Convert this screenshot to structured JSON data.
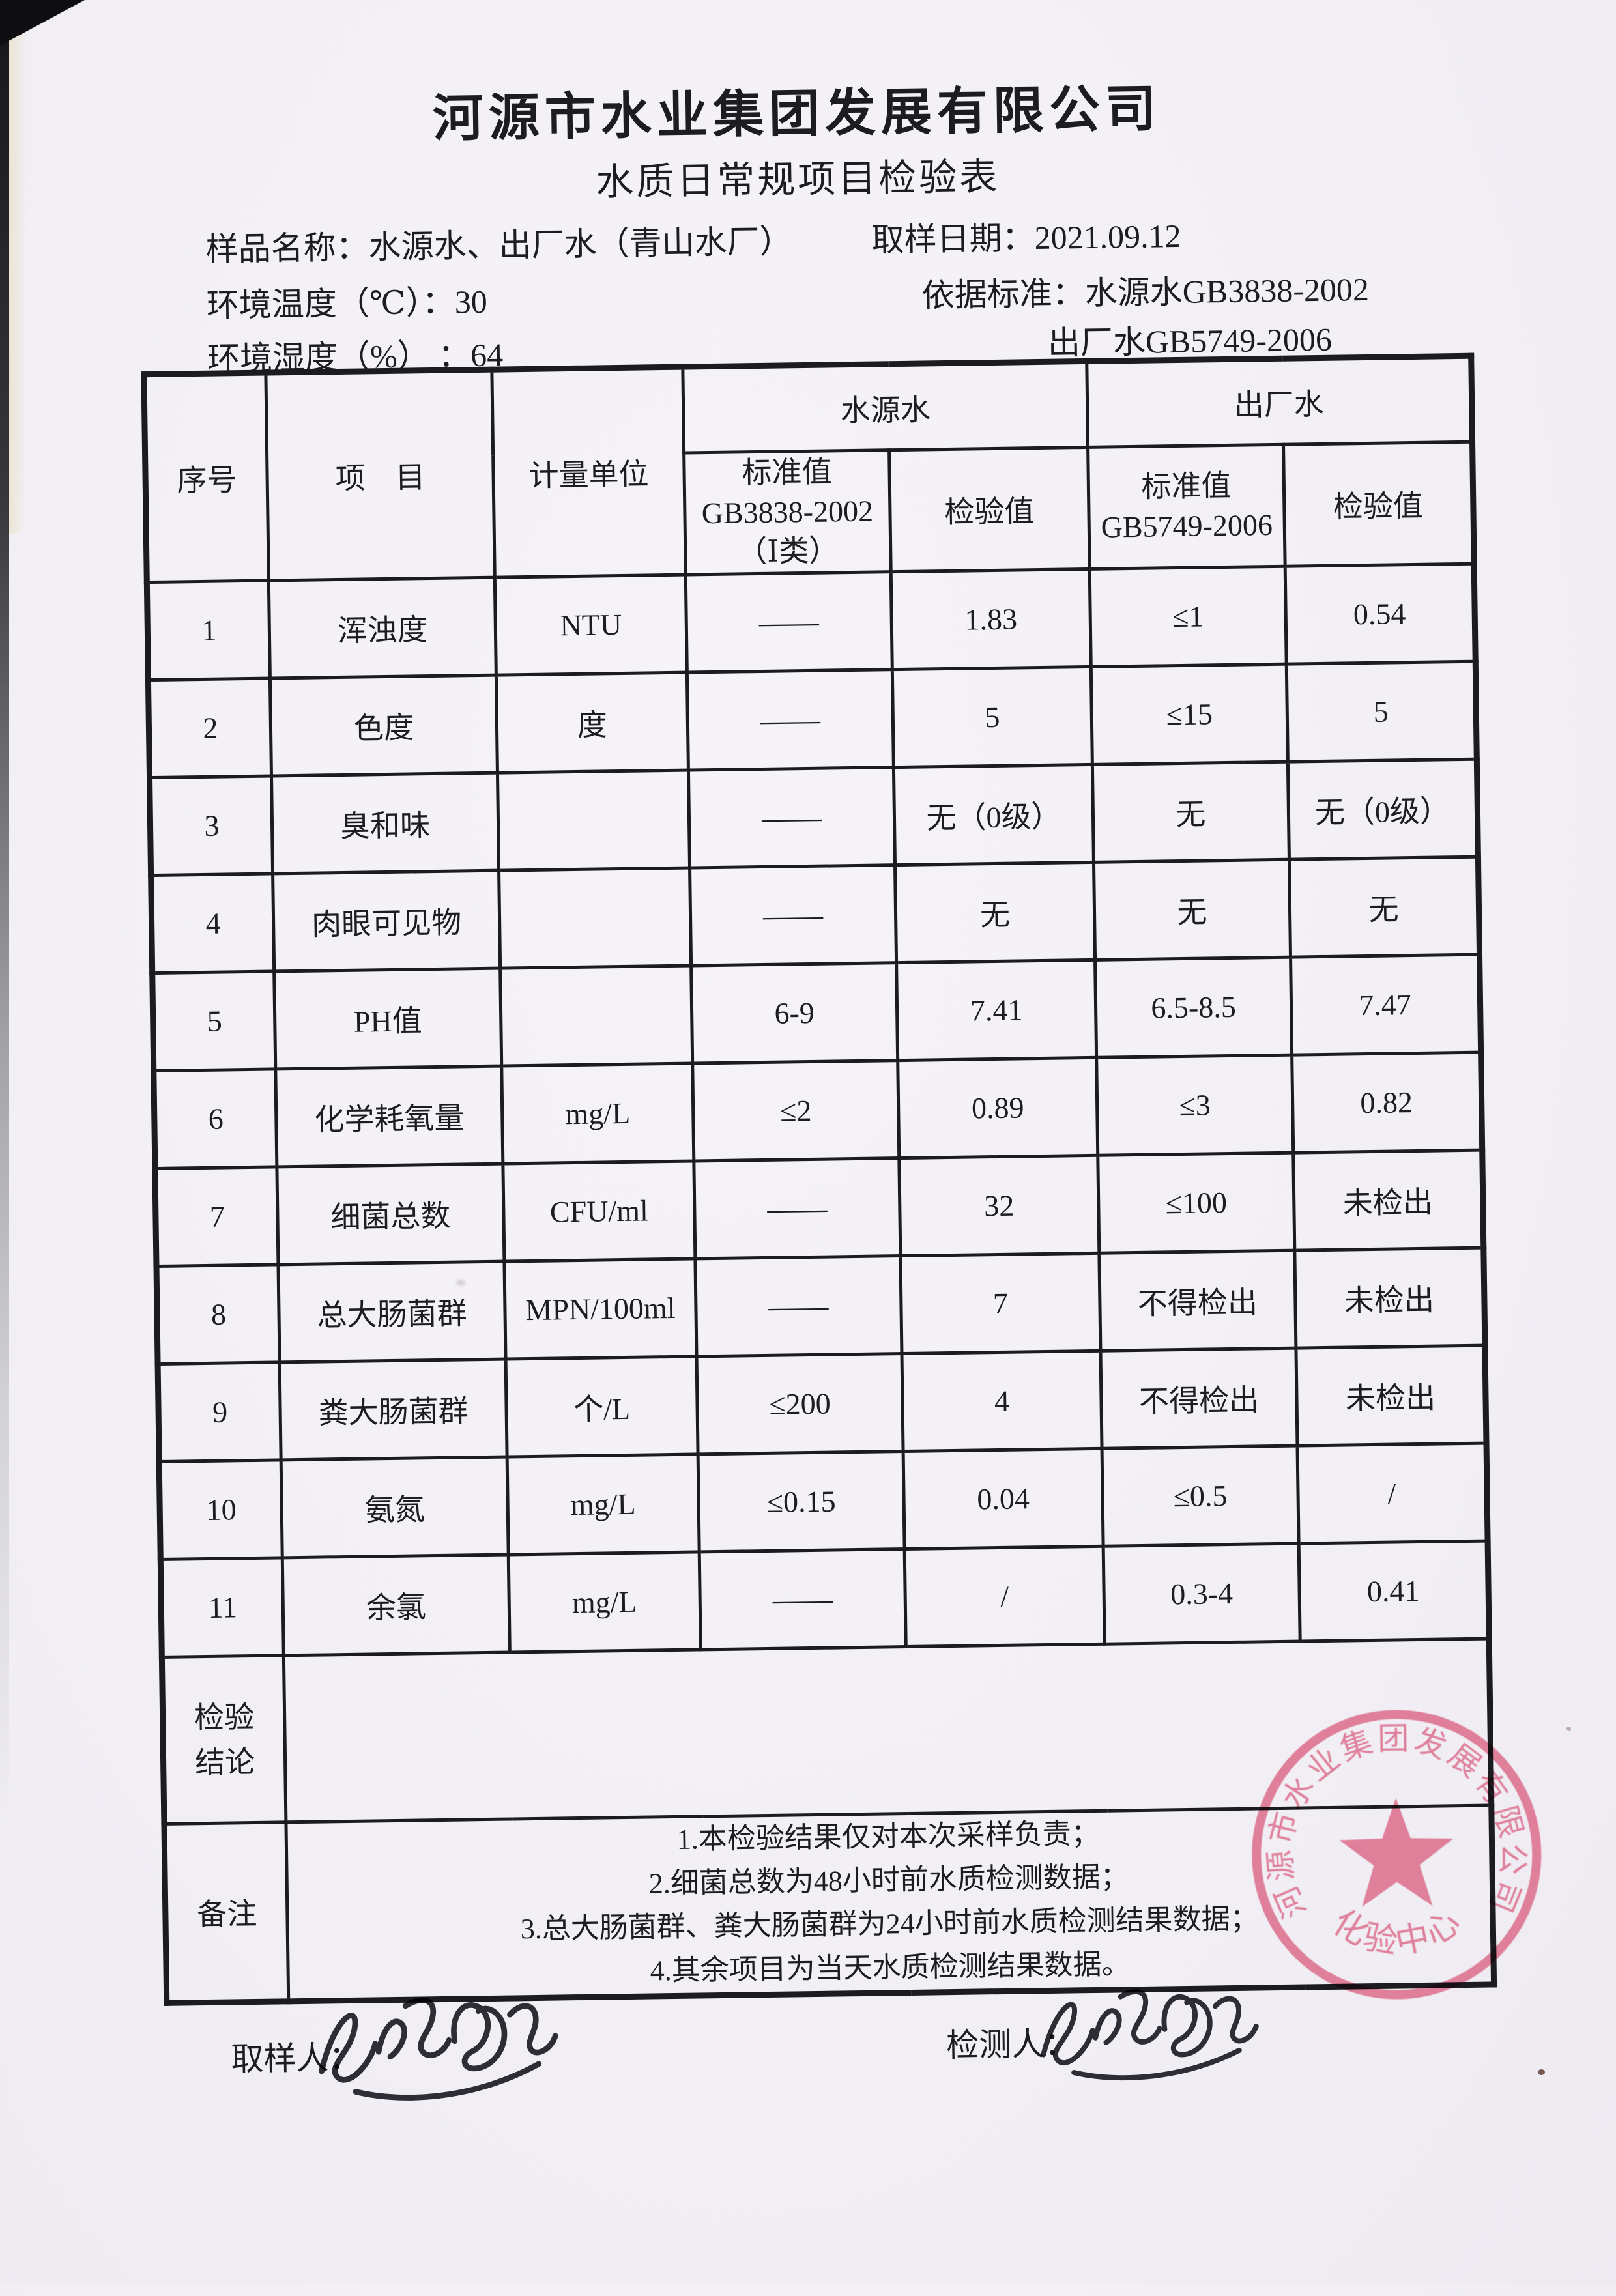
{
  "document": {
    "company_name": "河源市水业集团发展有限公司",
    "form_title": "水质日常规项目检验表"
  },
  "info": {
    "sample_name_label": "样品名称：",
    "sample_name_value": "水源水、出厂水（青山水厂）",
    "sampling_date_label": "取样日期：",
    "sampling_date_value": "2021.09.12",
    "ambient_temp_label": "环境温度（℃）：",
    "ambient_temp_value": "30",
    "standard_label": "依据标准：",
    "standard_source_water": "水源水GB3838-2002",
    "ambient_humidity_label": "环境湿度（%） ：",
    "ambient_humidity_value": "64",
    "standard_finished_water": "出厂水GB5749-2006"
  },
  "table": {
    "headers": {
      "seq": "序号",
      "item": "项　目",
      "unit": "计量单位",
      "source_water_group": "水源水",
      "finished_water_group": "出厂水",
      "source_std": "标准值\nGB3838-2002\n（Ⅰ类）",
      "source_check": "检验值",
      "finished_std": "标准值\nGB5749-2006",
      "finished_check": "检验值"
    },
    "rows": [
      [
        "1",
        "浑浊度",
        "NTU",
        "——",
        "1.83",
        "≤1",
        "0.54"
      ],
      [
        "2",
        "色度",
        "度",
        "——",
        "5",
        "≤15",
        "5"
      ],
      [
        "3",
        "臭和味",
        "",
        "——",
        "无（0级）",
        "无",
        "无（0级）"
      ],
      [
        "4",
        "肉眼可见物",
        "",
        "——",
        "无",
        "无",
        "无"
      ],
      [
        "5",
        "PH值",
        "",
        "6-9",
        "7.41",
        "6.5-8.5",
        "7.47"
      ],
      [
        "6",
        "化学耗氧量",
        "mg/L",
        "≤2",
        "0.89",
        "≤3",
        "0.82"
      ],
      [
        "7",
        "细菌总数",
        "CFU/ml",
        "——",
        "32",
        "≤100",
        "未检出"
      ],
      [
        "8",
        "总大肠菌群",
        "MPN/100ml",
        "——",
        "7",
        "不得检出",
        "未检出"
      ],
      [
        "9",
        "粪大肠菌群",
        "个/L",
        "≤200",
        "4",
        "不得检出",
        "未检出"
      ],
      [
        "10",
        "氨氮",
        "mg/L",
        "≤0.15",
        "0.04",
        "≤0.5",
        "/"
      ],
      [
        "11",
        "余氯",
        "mg/L",
        "——",
        "/",
        "0.3-4",
        "0.41"
      ]
    ],
    "conclusion_label": "检验\n结论",
    "conclusion_value": "",
    "remark_label": "备注",
    "remarks": [
      "1.本检验结果仅对本次采样负责；",
      "2.细菌总数为48小时前水质检测数据；",
      "3.总大肠菌群、粪大肠菌群为24小时前水质检测结果数据；",
      "4.其余项目为当天水质检测结果数据。"
    ]
  },
  "footer": {
    "sampler_label": "取样人：",
    "tester_label": "检测人："
  },
  "stamp": {
    "ring_text": "河源市水业集团发展有限公司",
    "bottom_text": "化验中心",
    "color": "#dc6c8b"
  }
}
